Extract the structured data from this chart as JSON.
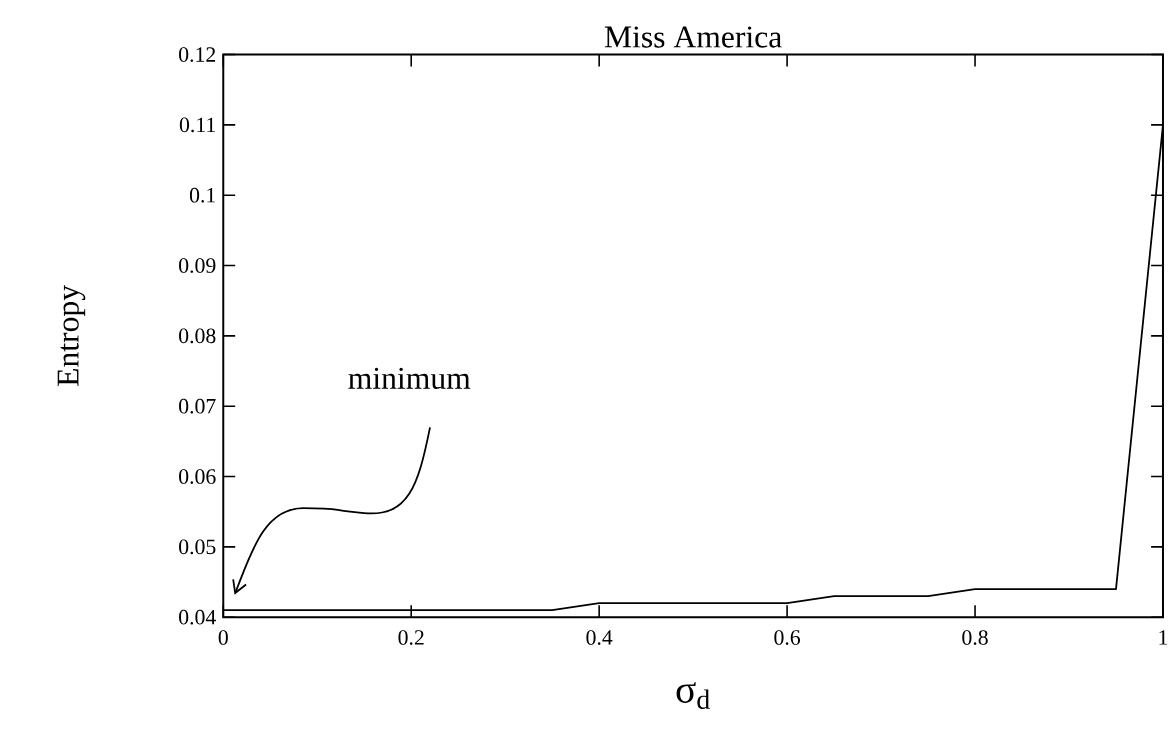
{
  "chart_data": {
    "type": "line",
    "title": "Miss America",
    "xlabel": "σ$_{d}$",
    "ylabel": "Entropy",
    "x": [
      0,
      0.35,
      0.4,
      0.6,
      0.65,
      0.75,
      0.8,
      0.95,
      1
    ],
    "series": [
      {
        "color": "#000000",
        "values": [
          0.041,
          0.041,
          0.042,
          0.042,
          0.043,
          0.043,
          0.044,
          0.044,
          0.11
        ]
      }
    ],
    "xlim": [
      0,
      1
    ],
    "ylim": [
      0.04,
      0.12
    ],
    "xticks": [
      0,
      0.2,
      0.4,
      0.6,
      0.8,
      1
    ],
    "yticks": [
      0.04,
      0.05,
      0.06,
      0.07,
      0.08,
      0.09,
      0.1,
      0.11,
      0.12
    ],
    "annotations": [
      "minimum"
    ],
    "grid": false,
    "legend": false,
    "marker": "none",
    "line_style": "solid"
  }
}
